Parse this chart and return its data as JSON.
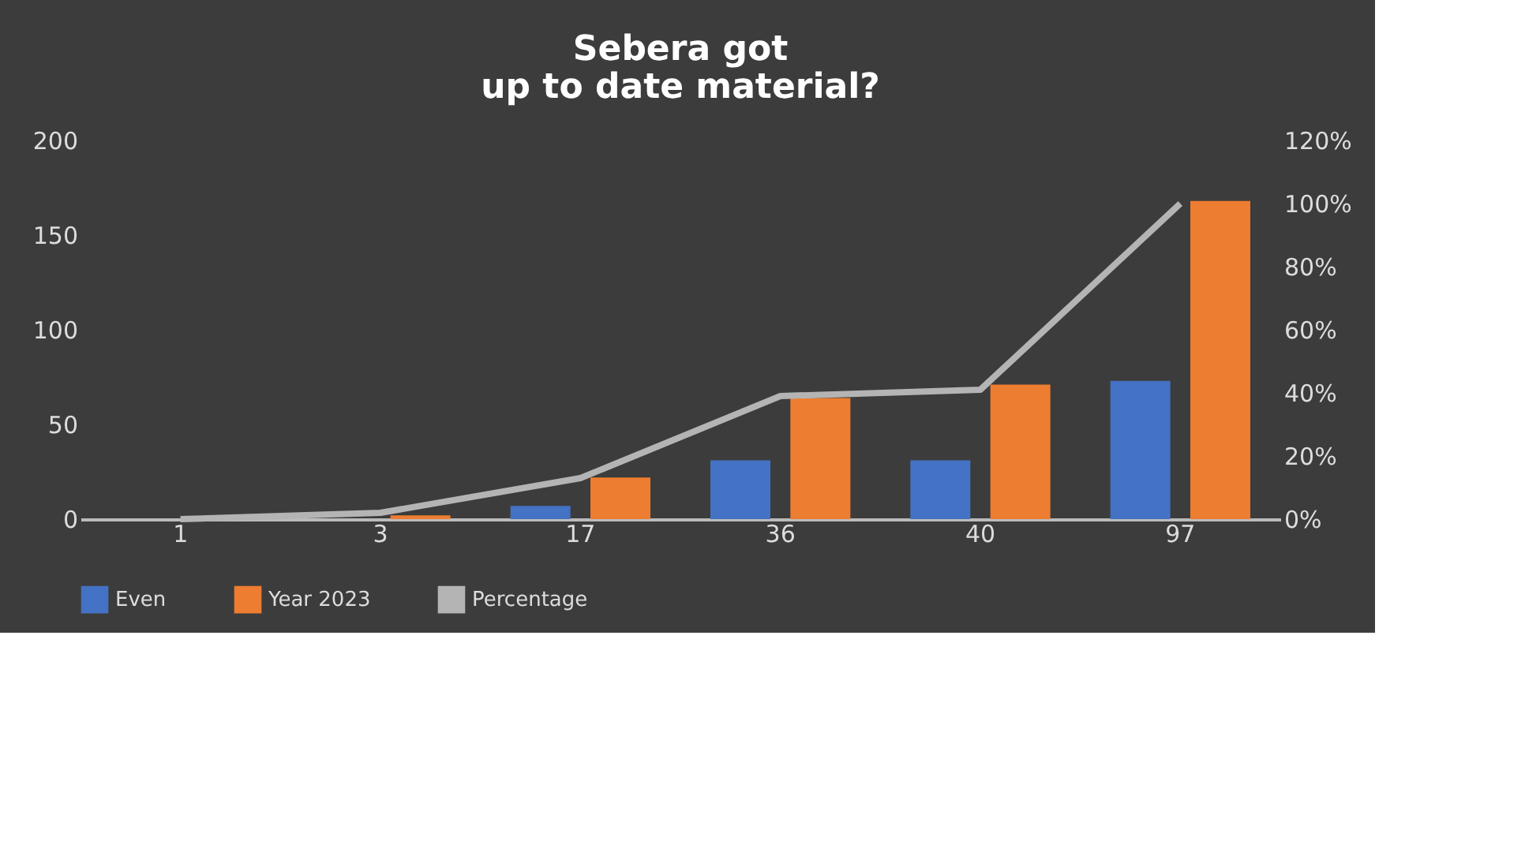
{
  "chart_data": {
    "type": "bar",
    "title": [
      "Sebera got",
      "up to date material?"
    ],
    "categories": [
      "1",
      "3",
      "17",
      "36",
      "40",
      "97"
    ],
    "series": [
      {
        "name": "Even",
        "color": "#4472c4",
        "values": [
          0,
          0,
          7,
          31,
          31,
          73
        ]
      },
      {
        "name": "Year 2023",
        "color": "#ed7d31",
        "values": [
          0,
          2,
          22,
          64,
          71,
          168
        ]
      },
      {
        "name": "Percentage",
        "type": "line",
        "axis": "y2",
        "color": "#b4b4b4",
        "values": [
          0,
          2,
          13,
          39,
          41,
          100
        ]
      }
    ],
    "ylim": [
      0,
      200
    ],
    "yticks": [
      0,
      50,
      100,
      150,
      200
    ],
    "y2lim": [
      0,
      120
    ],
    "y2ticks": [
      {
        "value": 0,
        "label": "0%"
      },
      {
        "value": 20,
        "label": "20%"
      },
      {
        "value": 40,
        "label": "40%"
      },
      {
        "value": 60,
        "label": "60%"
      },
      {
        "value": 80,
        "label": "80%"
      },
      {
        "value": 100,
        "label": "100%"
      },
      {
        "value": 120,
        "label": "120%"
      }
    ],
    "grid": false,
    "legend": "bottom",
    "marker": "none",
    "line_style": "solid"
  }
}
